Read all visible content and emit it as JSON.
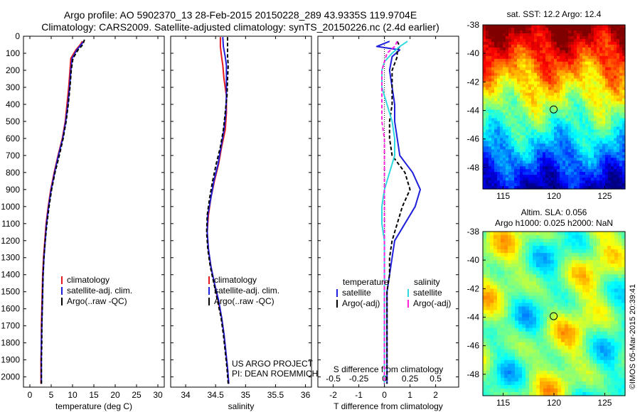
{
  "header": {
    "line1": "Argo profile: AO 5902370_13 28-Feb-2015 20150228_289 43.9335S 119.9704E",
    "line2": "Climatology: CARS2009. Satellite-adjusted climatology: synTS_20150226.nc (2.4d earlier)"
  },
  "credit": "US ARGO PROJECT",
  "pi": "PI: DEAN ROEMMICH",
  "watermark": "©IMOS 05-Mar-2015 20:39:41",
  "colors": {
    "climatology": "#e41a1c",
    "satellite": "#1f1fdc",
    "argo": "#000000",
    "sal_satellite": "#30d8e0",
    "sal_argo": "#ff22dd"
  },
  "chart_data": [
    {
      "type": "line",
      "title": "",
      "xlabel": "temperature (deg C)",
      "ylabel": "",
      "xlim": [
        -1.5,
        31.5
      ],
      "ylim": [
        2060,
        0
      ],
      "x_ticks": [
        "0",
        "5",
        "10",
        "15",
        "20",
        "25",
        "30"
      ],
      "x_tick_values": [
        0,
        5,
        10,
        15,
        20,
        25,
        30
      ],
      "y_ticks": [
        "0",
        "100",
        "200",
        "300",
        "400",
        "500",
        "600",
        "700",
        "800",
        "900",
        "1000",
        "1100",
        "1200",
        "1300",
        "1400",
        "1500",
        "1600",
        "1700",
        "1800",
        "1900",
        "2000"
      ],
      "y_tick_values": [
        0,
        100,
        200,
        300,
        400,
        500,
        600,
        700,
        800,
        900,
        1000,
        1100,
        1200,
        1300,
        1400,
        1500,
        1600,
        1700,
        1800,
        1900,
        2000
      ],
      "legend": [
        "climatology",
        "satellite-adj. clim.",
        "Argo(..raw -QC)"
      ],
      "series": [
        {
          "name": "climatology",
          "style": "solid",
          "x": [
            12.3,
            11.8,
            10.8,
            9.6,
            9.4,
            9.1,
            8.7,
            8.3,
            7.6,
            6.6,
            5.7,
            4.9,
            4.3,
            3.8,
            3.5,
            3.2,
            3.0,
            2.9,
            2.8,
            2.7,
            2.7,
            2.6,
            2.6
          ],
          "y": [
            30,
            50,
            80,
            130,
            200,
            300,
            400,
            500,
            600,
            700,
            800,
            900,
            1000,
            1100,
            1200,
            1300,
            1400,
            1500,
            1600,
            1700,
            1800,
            1900,
            2040
          ]
        },
        {
          "name": "satellite-adj. clim.",
          "style": "solid",
          "x": [
            12.6,
            12.0,
            11.0,
            9.9,
            9.6,
            9.3,
            8.9,
            8.4,
            7.7,
            6.7,
            5.8,
            5.0,
            4.4,
            3.9,
            3.6,
            3.3,
            3.1,
            3.0,
            2.9,
            2.8,
            2.7,
            2.7,
            2.7
          ],
          "y": [
            30,
            50,
            80,
            130,
            200,
            300,
            400,
            500,
            600,
            700,
            800,
            900,
            1000,
            1100,
            1200,
            1300,
            1400,
            1500,
            1600,
            1700,
            1800,
            1900,
            2040
          ]
        },
        {
          "name": "Argo(..raw -QC)",
          "style": "dashed",
          "x": [
            12.8,
            12.4,
            11.3,
            10.1,
            9.7,
            9.4,
            9.0,
            8.5,
            7.8,
            6.9,
            5.9,
            5.1,
            4.5,
            4.0,
            3.6,
            3.3,
            3.1,
            3.0,
            2.9,
            2.8,
            2.8,
            2.7,
            2.7
          ],
          "y": [
            20,
            50,
            80,
            130,
            200,
            300,
            400,
            500,
            600,
            700,
            800,
            900,
            1000,
            1100,
            1200,
            1300,
            1400,
            1500,
            1600,
            1700,
            1800,
            1900,
            2040
          ]
        }
      ]
    },
    {
      "type": "line",
      "title": "",
      "xlabel": "salinity",
      "ylabel": "",
      "xlim": [
        33.75,
        36.1
      ],
      "ylim": [
        2060,
        0
      ],
      "x_ticks": [
        "34",
        "34.5",
        "35",
        "35.5",
        "36"
      ],
      "x_tick_values": [
        34,
        34.5,
        35,
        35.5,
        36
      ],
      "legend": [
        "climatology",
        "satellite-adj. clim.",
        "Argo(..raw -QC)"
      ],
      "series": [
        {
          "name": "climatology",
          "style": "solid",
          "x": [
            34.58,
            34.58,
            34.6,
            34.62,
            34.64,
            34.68,
            34.68,
            34.66,
            34.6,
            34.55,
            34.48,
            34.42,
            34.38,
            34.36,
            34.38,
            34.42,
            34.48,
            34.54,
            34.6,
            34.64,
            34.67,
            34.7,
            34.72
          ],
          "y": [
            5,
            60,
            120,
            170,
            250,
            350,
            450,
            550,
            650,
            750,
            850,
            950,
            1050,
            1150,
            1250,
            1350,
            1450,
            1550,
            1650,
            1750,
            1850,
            1950,
            2040
          ]
        },
        {
          "name": "satellite-adj. clim.",
          "style": "solid",
          "x": [
            34.62,
            34.63,
            34.66,
            34.68,
            34.68,
            34.68,
            34.67,
            34.64,
            34.59,
            34.54,
            34.47,
            34.42,
            34.37,
            34.36,
            34.38,
            34.42,
            34.48,
            34.55,
            34.6,
            34.64,
            34.67,
            34.7,
            34.72
          ],
          "y": [
            5,
            60,
            120,
            170,
            250,
            350,
            450,
            550,
            650,
            750,
            850,
            950,
            1050,
            1150,
            1250,
            1350,
            1450,
            1550,
            1650,
            1750,
            1850,
            1950,
            2040
          ]
        },
        {
          "name": "Argo(..raw -QC)",
          "style": "dashed",
          "x": [
            34.7,
            34.7,
            34.7,
            34.71,
            34.7,
            34.69,
            34.66,
            34.63,
            34.58,
            34.51,
            34.45,
            34.4,
            34.36,
            34.35,
            34.37,
            34.41,
            34.47,
            34.53,
            34.59,
            34.63,
            34.66,
            34.69,
            34.71
          ],
          "y": [
            5,
            60,
            120,
            170,
            250,
            350,
            450,
            550,
            650,
            750,
            850,
            950,
            1050,
            1150,
            1250,
            1350,
            1450,
            1550,
            1650,
            1750,
            1850,
            1950,
            2040
          ]
        }
      ]
    },
    {
      "type": "line",
      "title": "",
      "xlabel": "T difference from climatology",
      "x2label": "S difference from climatology",
      "ylabel": "",
      "xlim": [
        -2.6,
        2.9
      ],
      "ylim": [
        2060,
        0
      ],
      "x_ticks": [
        "-2",
        "-1",
        "0",
        "1",
        "2"
      ],
      "x_tick_values": [
        -2,
        -1,
        0,
        1,
        2
      ],
      "x2_ticks": [
        "-0.5",
        "-0.25",
        "0",
        "0.25",
        "0.5"
      ],
      "x2_tick_values": [
        -0.5,
        -0.25,
        0,
        0.25,
        0.5
      ],
      "legend_titles": [
        "temperature",
        "salinity"
      ],
      "legend": [
        "satellite",
        "Argo(-adj)",
        "satellite",
        "Argo(-adj)"
      ],
      "series": [
        {
          "name": "satellite",
          "group": "temperature",
          "style": "solid",
          "x": [
            0.2,
            -0.3,
            0.6,
            0.3,
            0.2,
            0.3,
            0.4,
            0.4,
            0.5,
            0.6,
            1.1,
            1.4,
            1.2,
            0.8,
            0.4,
            0.3,
            0.2,
            0.1,
            0.1,
            0.1,
            0.1,
            0.1,
            0.1
          ],
          "y": [
            30,
            60,
            80,
            120,
            200,
            300,
            400,
            500,
            600,
            700,
            800,
            900,
            1000,
            1100,
            1200,
            1300,
            1400,
            1500,
            1600,
            1700,
            1800,
            1900,
            2040
          ]
        },
        {
          "name": "Argo(-adj)",
          "group": "temperature",
          "style": "dashed",
          "x": [
            0.5,
            0.6,
            0.5,
            0.5,
            0.3,
            0.3,
            0.3,
            0.2,
            0.2,
            0.3,
            0.8,
            1.0,
            0.7,
            0.5,
            0.3,
            0.2,
            0.2,
            0.1,
            0.1,
            0.1,
            0.1,
            0.1,
            0.1
          ],
          "y": [
            30,
            60,
            80,
            120,
            200,
            300,
            400,
            500,
            600,
            700,
            800,
            900,
            1000,
            1100,
            1200,
            1300,
            1400,
            1500,
            1600,
            1700,
            1800,
            1900,
            2040
          ]
        },
        {
          "name": "satellite",
          "group": "salinity",
          "style": "solid",
          "x": [
            0.9,
            0.6,
            0.3,
            0.0,
            -0.1,
            -0.1,
            0.1,
            0.3,
            0.4,
            0.4,
            0.2,
            0.0,
            -0.1,
            -0.1,
            0.0,
            0.0,
            0.0,
            0.0,
            0.0,
            0.0,
            0.0,
            0.0,
            0.0
          ],
          "y": [
            30,
            60,
            100,
            150,
            200,
            300,
            400,
            500,
            600,
            700,
            800,
            900,
            1000,
            1100,
            1200,
            1300,
            1400,
            1500,
            1600,
            1700,
            1800,
            1900,
            2040
          ]
        },
        {
          "name": "Argo(-adj)",
          "group": "salinity",
          "style": "dashed",
          "x": [
            0.5,
            0.4,
            0.1,
            0.0,
            -0.1,
            -0.1,
            -0.1,
            -0.1,
            0.0,
            0.0,
            0.0,
            0.0,
            0.0,
            0.0,
            0.0,
            0.0,
            0.0,
            0.0,
            0.0,
            0.0,
            0.0,
            0.0,
            0.0
          ],
          "y": [
            30,
            60,
            100,
            150,
            200,
            300,
            400,
            500,
            600,
            700,
            800,
            900,
            1000,
            1100,
            1200,
            1300,
            1400,
            1500,
            1600,
            1700,
            1800,
            1900,
            2040
          ]
        }
      ]
    },
    {
      "type": "heatmap",
      "title": "sat. SST: 12.2 Argo: 12.4",
      "xlim": [
        113,
        127
      ],
      "ylim": [
        -49.5,
        -38
      ],
      "x_ticks": [
        "115",
        "120",
        "125"
      ],
      "x_tick_values": [
        115,
        120,
        125
      ],
      "y_ticks": [
        "-38",
        "-40",
        "-42",
        "-44",
        "-46",
        "-48"
      ],
      "y_tick_values": [
        -38,
        -40,
        -42,
        -44,
        -46,
        -48
      ],
      "marker": {
        "lon": 119.97,
        "lat": -43.93
      },
      "colormap": "jet"
    },
    {
      "type": "heatmap",
      "title": "Altim. SLA: 0.056",
      "subtitle": "Argo h1000: 0.025 h2000: NaN",
      "xlim": [
        113,
        127
      ],
      "ylim": [
        -49.5,
        -38
      ],
      "x_ticks": [
        "115",
        "120",
        "125"
      ],
      "x_tick_values": [
        115,
        120,
        125
      ],
      "y_ticks": [
        "-38",
        "-40",
        "-42",
        "-44",
        "-46",
        "-48"
      ],
      "y_tick_values": [
        -38,
        -40,
        -42,
        -44,
        -46,
        -48
      ],
      "marker": {
        "lon": 119.97,
        "lat": -43.93
      },
      "colormap": "jet"
    }
  ]
}
